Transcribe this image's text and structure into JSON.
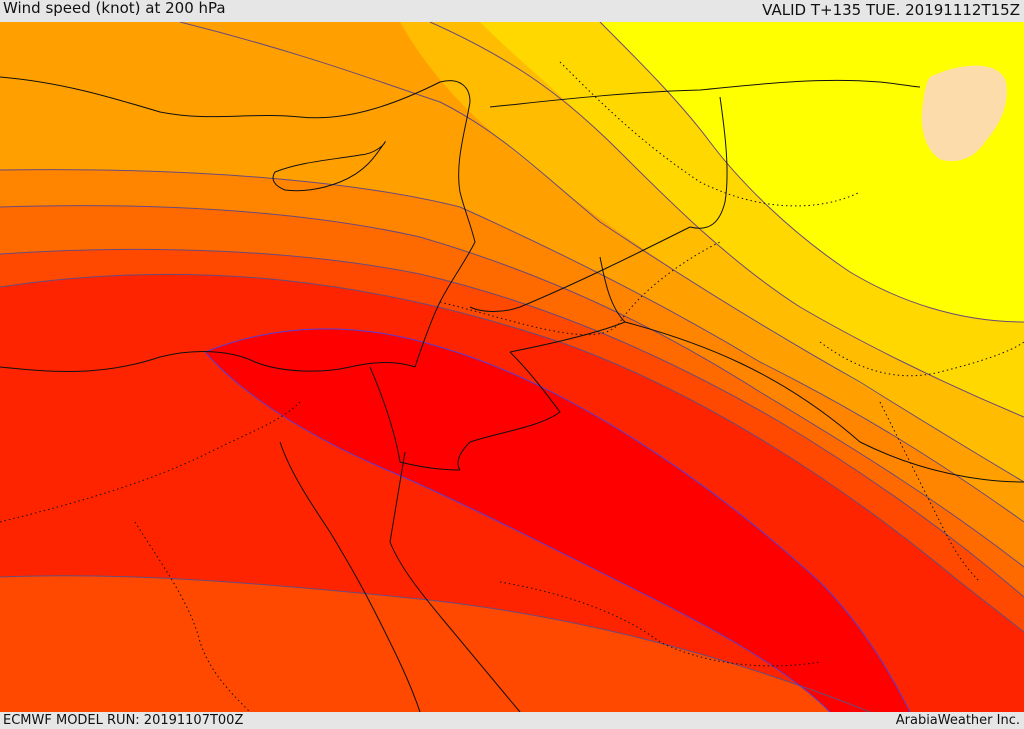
{
  "header": {
    "title": "Wind speed (knot) at 200 hPa",
    "valid": "VALID T+135 TUE. 20191112T15Z"
  },
  "footer": {
    "model_run": "ECMWF MODEL RUN: 20191107T00Z",
    "credit": "ArabiaWeather Inc."
  },
  "map": {
    "colors": {
      "background_orange": "#ff4800",
      "band_red_orange": "#ff2400",
      "core_red": "#ff0000",
      "band_orange": "#ff6a00",
      "band_orange_light": "#ff8400",
      "band_amber": "#ffa000",
      "band_gold": "#ffbc00",
      "band_yellow_orange": "#ffd800",
      "band_yellow": "#ffff00",
      "low_peach": "#fcdcaa",
      "contour_line": "#6b4a7a",
      "inner_contour_line": "#5a3cd6",
      "coastline": "#111111"
    }
  }
}
